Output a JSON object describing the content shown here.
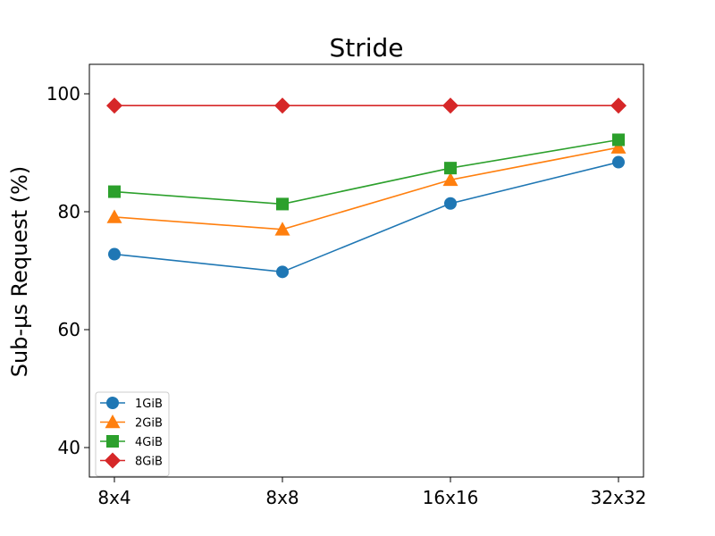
{
  "chart_data": {
    "type": "line",
    "title": "Stride",
    "xlabel": "",
    "ylabel": "Sub-µs Request (%)",
    "categories": [
      "8x4",
      "8x8",
      "16x16",
      "32x32"
    ],
    "ylim": [
      35,
      105
    ],
    "yticks": [
      40,
      60,
      80,
      100
    ],
    "grid": false,
    "legend_position": "lower-left",
    "series": [
      {
        "name": "1GiB",
        "color": "#1f77b4",
        "marker": "circle",
        "values": [
          72.8,
          69.8,
          81.4,
          88.4
        ]
      },
      {
        "name": "2GiB",
        "color": "#ff7f0e",
        "marker": "triangle-up",
        "values": [
          79.1,
          77.0,
          85.4,
          90.9
        ]
      },
      {
        "name": "4GiB",
        "color": "#2ca02c",
        "marker": "square",
        "values": [
          83.4,
          81.3,
          87.4,
          92.2
        ]
      },
      {
        "name": "8GiB",
        "color": "#d62728",
        "marker": "diamond",
        "values": [
          98.0,
          98.0,
          98.0,
          98.0
        ]
      }
    ]
  }
}
